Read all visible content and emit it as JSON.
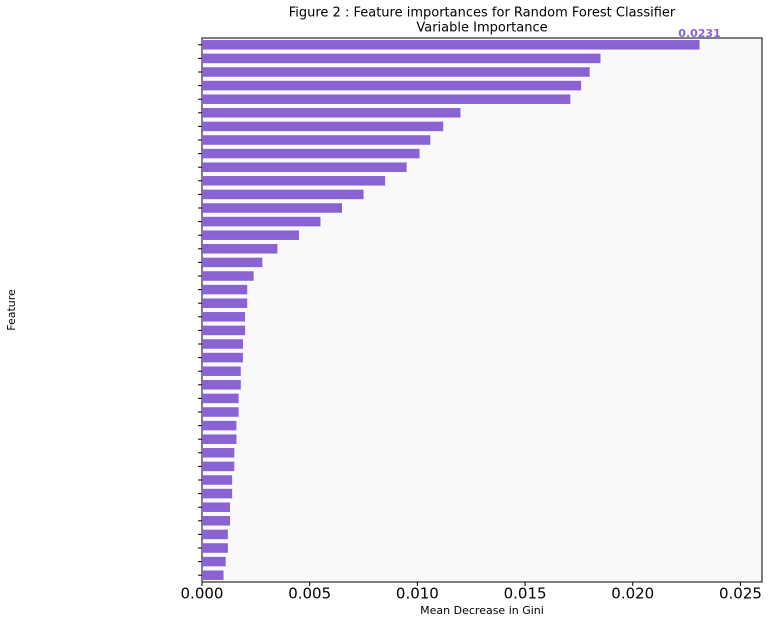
{
  "chart_data": {
    "type": "barh",
    "title": "Figure 2 : Feature importances for Random Forest Classifier",
    "subtitle": "Variable Importance",
    "xlabel": "Mean Decrease in Gini",
    "ylabel": "Feature",
    "color": "#8a63d2",
    "label_color": "#8a63d2",
    "categories": [
      null,
      null,
      null,
      null,
      null,
      null,
      null,
      null,
      null,
      null,
      null,
      null,
      null,
      null,
      null,
      null,
      null,
      null,
      null,
      null,
      null,
      null,
      null,
      null,
      null,
      null,
      null,
      null,
      null,
      null,
      null,
      null,
      null,
      null,
      null,
      null,
      null,
      null,
      null,
      null
    ],
    "values": [
      0.0231,
      0.0185,
      0.018,
      0.0176,
      0.0171,
      0.012,
      0.0112,
      0.0106,
      0.0101,
      0.0095,
      0.0085,
      0.0075,
      0.0065,
      0.0055,
      0.0045,
      0.0035,
      0.0028,
      0.0024,
      0.0021,
      0.0021,
      0.002,
      0.002,
      0.0019,
      0.0019,
      0.0018,
      0.0018,
      0.0017,
      0.0017,
      0.0016,
      0.0016,
      0.0015,
      0.0015,
      0.0014,
      0.0014,
      0.0013,
      0.0013,
      0.0012,
      0.0012,
      0.0011,
      0.001
    ],
    "value_labels": [
      "0.0231",
      null,
      null,
      null,
      null,
      null,
      null,
      null,
      null,
      null,
      null,
      null,
      null,
      null,
      null,
      null,
      null,
      null,
      null,
      null,
      null,
      null,
      null,
      null,
      null,
      null,
      null,
      null,
      null,
      null,
      null,
      null,
      null,
      null,
      null,
      null,
      null,
      null,
      null,
      null
    ],
    "xlim": [
      0,
      0.026
    ],
    "xticks": [
      {
        "value": 0,
        "label": "0.000"
      },
      0.005,
      {
        "value": 0.01,
        "label": "0.010"
      },
      0.015,
      {
        "value": 0.02,
        "label": "0.020"
      },
      0.025
    ]
  }
}
